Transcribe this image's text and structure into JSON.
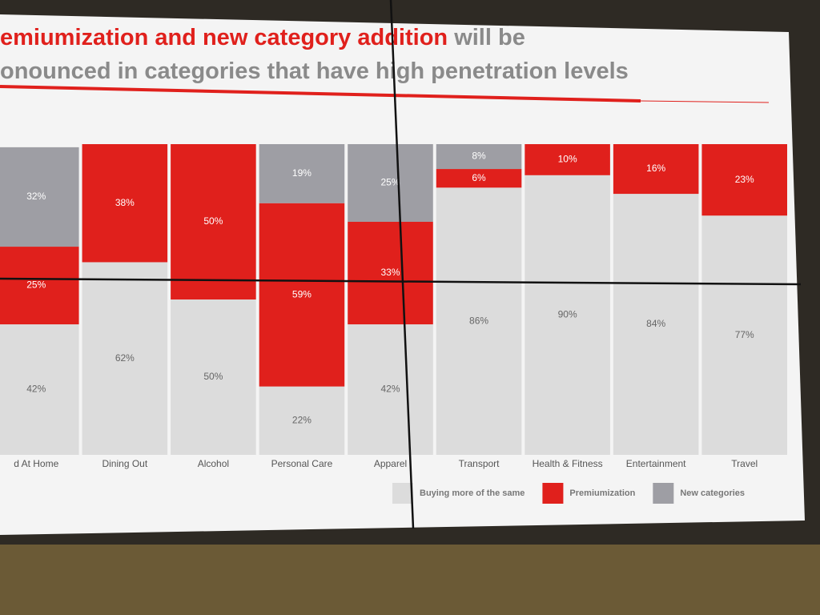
{
  "chart_data": {
    "type": "stacked_bar",
    "title_lines": [
      [
        {
          "text": "emiumization and new category addition",
          "color": "#e0201c"
        },
        {
          "text": " will be",
          "color": "#8a8a8a"
        }
      ],
      [
        {
          "text": "onounced in categories that have high penetration levels",
          "color": "#8a8a8a"
        }
      ]
    ],
    "categories": [
      "d At Home",
      "Dining Out",
      "Alcohol",
      "Personal Care",
      "Apparel",
      "Transport",
      "Health & Fitness",
      "Entertainment",
      "Travel"
    ],
    "ylim": [
      0,
      100
    ],
    "series": [
      {
        "name": "Buying more of the same",
        "color": "#dcdcdc",
        "values": [
          42,
          62,
          50,
          22,
          42,
          86,
          90,
          84,
          77
        ],
        "value_labels": [
          "42%",
          "62%",
          "50%",
          "22%",
          "42%",
          "86%",
          "90%",
          "84%",
          "77%"
        ]
      },
      {
        "name": "Premiumization",
        "color": "#e0201c",
        "values": [
          25,
          38,
          50,
          59,
          33,
          6,
          10,
          16,
          23
        ],
        "value_labels": [
          "25%",
          "38%",
          "50%",
          "59%",
          "33%",
          "6%",
          "10%",
          "16%",
          "23%"
        ]
      },
      {
        "name": "New categories",
        "color": "#9e9ea4",
        "values": [
          32,
          null,
          null,
          19,
          25,
          8,
          null,
          null,
          null
        ],
        "value_labels": [
          "32%",
          null,
          null,
          "19%",
          "25%",
          "8%",
          null,
          null,
          null
        ]
      }
    ]
  }
}
